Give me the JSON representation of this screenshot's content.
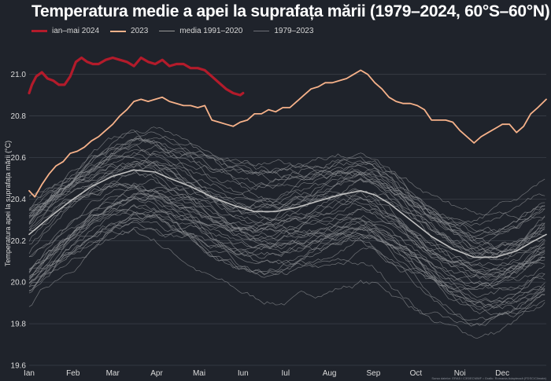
{
  "chart_data": {
    "type": "line",
    "title": "Temperatura medie a apei la suprafața mării (1979–2024, 60°S–60°N)",
    "ylabel": "Temperatura apei la suprafața mării (°C)",
    "xlabel": "",
    "ylim": [
      19.6,
      21.15
    ],
    "yticks": [
      19.6,
      19.8,
      20.0,
      20.2,
      20.4,
      20.6,
      20.8,
      21.0
    ],
    "ytick_labels": [
      "19.6",
      "19.8",
      "20.0",
      "20.2",
      "20.4",
      "20.6",
      "20.8",
      "21.0"
    ],
    "xlim": [
      1,
      366
    ],
    "x_unit": "day of year",
    "month_days": [
      1,
      32,
      60,
      91,
      121,
      152,
      182,
      213,
      244,
      274,
      305,
      335
    ],
    "month_labels": [
      "Ian",
      "Feb",
      "Mar",
      "Apr",
      "Mai",
      "Iun",
      "Iul",
      "Aug",
      "Sep",
      "Oct",
      "Noi",
      "Dec"
    ],
    "grid": "horizontal",
    "legend_position": "top-left",
    "source": "Sursa datelor: ERA5 / C3S/ECMWF • Grafic: Romania Adaptează (FDSC/Climate)",
    "colors": {
      "y2024": "#b31b2b",
      "y2023": "#f7b28a",
      "mean": "#bfbfbf",
      "years": "#8b8d91",
      "background": "#1f232b",
      "grid": "#3a3f48"
    },
    "series": [
      {
        "name": "ian–mai 2024",
        "x": [
          1,
          3,
          6,
          10,
          14,
          18,
          22,
          26,
          30,
          34,
          38,
          42,
          46,
          50,
          55,
          60,
          65,
          70,
          75,
          80,
          85,
          90,
          95,
          100,
          105,
          110,
          115,
          120,
          125,
          130,
          135,
          140,
          145,
          150,
          152
        ],
        "y": [
          20.91,
          20.95,
          20.99,
          21.01,
          20.98,
          20.97,
          20.95,
          20.95,
          20.99,
          21.06,
          21.08,
          21.06,
          21.05,
          21.05,
          21.07,
          21.08,
          21.07,
          21.06,
          21.04,
          21.08,
          21.06,
          21.05,
          21.07,
          21.04,
          21.05,
          21.05,
          21.03,
          21.03,
          21.02,
          20.99,
          20.96,
          20.93,
          20.91,
          20.9,
          20.91
        ]
      },
      {
        "name": "2023",
        "x": [
          1,
          5,
          10,
          15,
          20,
          25,
          30,
          35,
          40,
          45,
          50,
          55,
          60,
          65,
          70,
          75,
          80,
          85,
          90,
          95,
          100,
          105,
          110,
          115,
          120,
          125,
          130,
          135,
          140,
          145,
          150,
          155,
          160,
          165,
          170,
          175,
          180,
          185,
          190,
          195,
          200,
          205,
          210,
          215,
          220,
          225,
          230,
          235,
          240,
          245,
          250,
          255,
          260,
          265,
          270,
          275,
          280,
          285,
          290,
          295,
          300,
          305,
          310,
          315,
          320,
          325,
          330,
          335,
          340,
          345,
          350,
          355,
          360,
          366
        ],
        "y": [
          20.44,
          20.41,
          20.47,
          20.52,
          20.56,
          20.58,
          20.62,
          20.63,
          20.65,
          20.68,
          20.7,
          20.73,
          20.76,
          20.8,
          20.83,
          20.87,
          20.88,
          20.87,
          20.88,
          20.89,
          20.87,
          20.86,
          20.85,
          20.85,
          20.84,
          20.85,
          20.78,
          20.77,
          20.76,
          20.75,
          20.77,
          20.78,
          20.81,
          20.81,
          20.83,
          20.82,
          20.84,
          20.84,
          20.87,
          20.9,
          20.93,
          20.94,
          20.96,
          20.96,
          20.97,
          20.98,
          21.0,
          21.02,
          21.0,
          20.96,
          20.93,
          20.89,
          20.87,
          20.86,
          20.86,
          20.85,
          20.83,
          20.78,
          20.78,
          20.78,
          20.77,
          20.73,
          20.7,
          20.67,
          20.7,
          20.72,
          20.74,
          20.76,
          20.76,
          20.72,
          20.75,
          20.81,
          20.84,
          20.88
        ]
      },
      {
        "name": "media 1991–2020",
        "x": [
          1,
          15,
          30,
          45,
          60,
          75,
          90,
          100,
          115,
          130,
          145,
          160,
          175,
          190,
          205,
          220,
          235,
          245,
          255,
          270,
          285,
          300,
          315,
          330,
          345,
          355,
          366
        ],
        "y": [
          20.23,
          20.31,
          20.39,
          20.46,
          20.51,
          20.54,
          20.53,
          20.5,
          20.46,
          20.41,
          20.37,
          20.34,
          20.34,
          20.36,
          20.39,
          20.42,
          20.44,
          20.42,
          20.38,
          20.3,
          20.22,
          20.16,
          20.12,
          20.12,
          20.15,
          20.19,
          20.23
        ]
      }
    ],
    "background_years_label": "1979–2023",
    "background_years_count": 45
  },
  "legend": [
    {
      "label": "ian–mai 2024",
      "color": "#b31b2b",
      "width": 3
    },
    {
      "label": "2023",
      "color": "#f7b28a",
      "width": 2
    },
    {
      "label": "media 1991–2020",
      "color": "#9a9a9a",
      "width": 1.5
    },
    {
      "label": "1979–2023",
      "color": "#6e7077",
      "width": 1
    }
  ]
}
